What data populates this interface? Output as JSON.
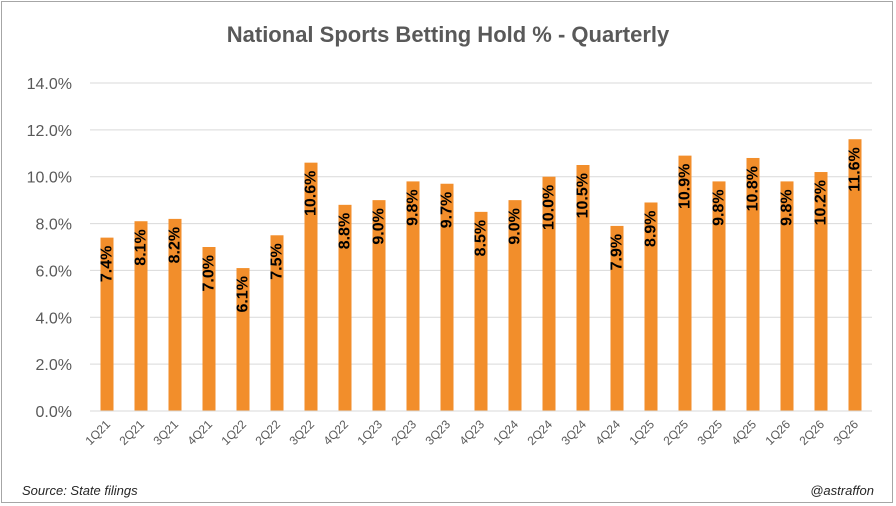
{
  "chart_data": {
    "type": "bar",
    "title": "National Sports Betting Hold % - Quarterly",
    "xlabel": "",
    "ylabel": "",
    "ylim": [
      0,
      14
    ],
    "yticks": [
      "0.0%",
      "2.0%",
      "4.0%",
      "6.0%",
      "8.0%",
      "10.0%",
      "12.0%",
      "14.0%"
    ],
    "categories": [
      "1Q21",
      "2Q21",
      "3Q21",
      "4Q21",
      "1Q22",
      "2Q22",
      "3Q22",
      "4Q22",
      "1Q23",
      "2Q23",
      "3Q23",
      "4Q23",
      "1Q24",
      "2Q24",
      "3Q24",
      "4Q24",
      "1Q25",
      "2Q25",
      "3Q25",
      "4Q25",
      "1Q26",
      "2Q26",
      "3Q26"
    ],
    "values": [
      7.4,
      8.1,
      8.2,
      7.0,
      6.1,
      7.5,
      10.6,
      8.8,
      9.0,
      9.8,
      9.7,
      8.5,
      9.0,
      10.0,
      10.5,
      7.9,
      8.9,
      10.9,
      9.8,
      10.8,
      9.8,
      10.2,
      11.6
    ],
    "data_labels": [
      "7.4%",
      "8.1%",
      "8.2%",
      "7.0%",
      "6.1%",
      "7.5%",
      "10.6%",
      "8.8%",
      "9.0%",
      "9.8%",
      "9.7%",
      "8.5%",
      "9.0%",
      "10.0%",
      "10.5%",
      "7.9%",
      "8.9%",
      "10.9%",
      "9.8%",
      "10.8%",
      "9.8%",
      "10.2%",
      "11.6%"
    ],
    "bar_color": "#f28e2b",
    "grid": true,
    "legend": "none"
  },
  "footer": {
    "source": "Source: State filings",
    "credit": "@astraffon"
  }
}
